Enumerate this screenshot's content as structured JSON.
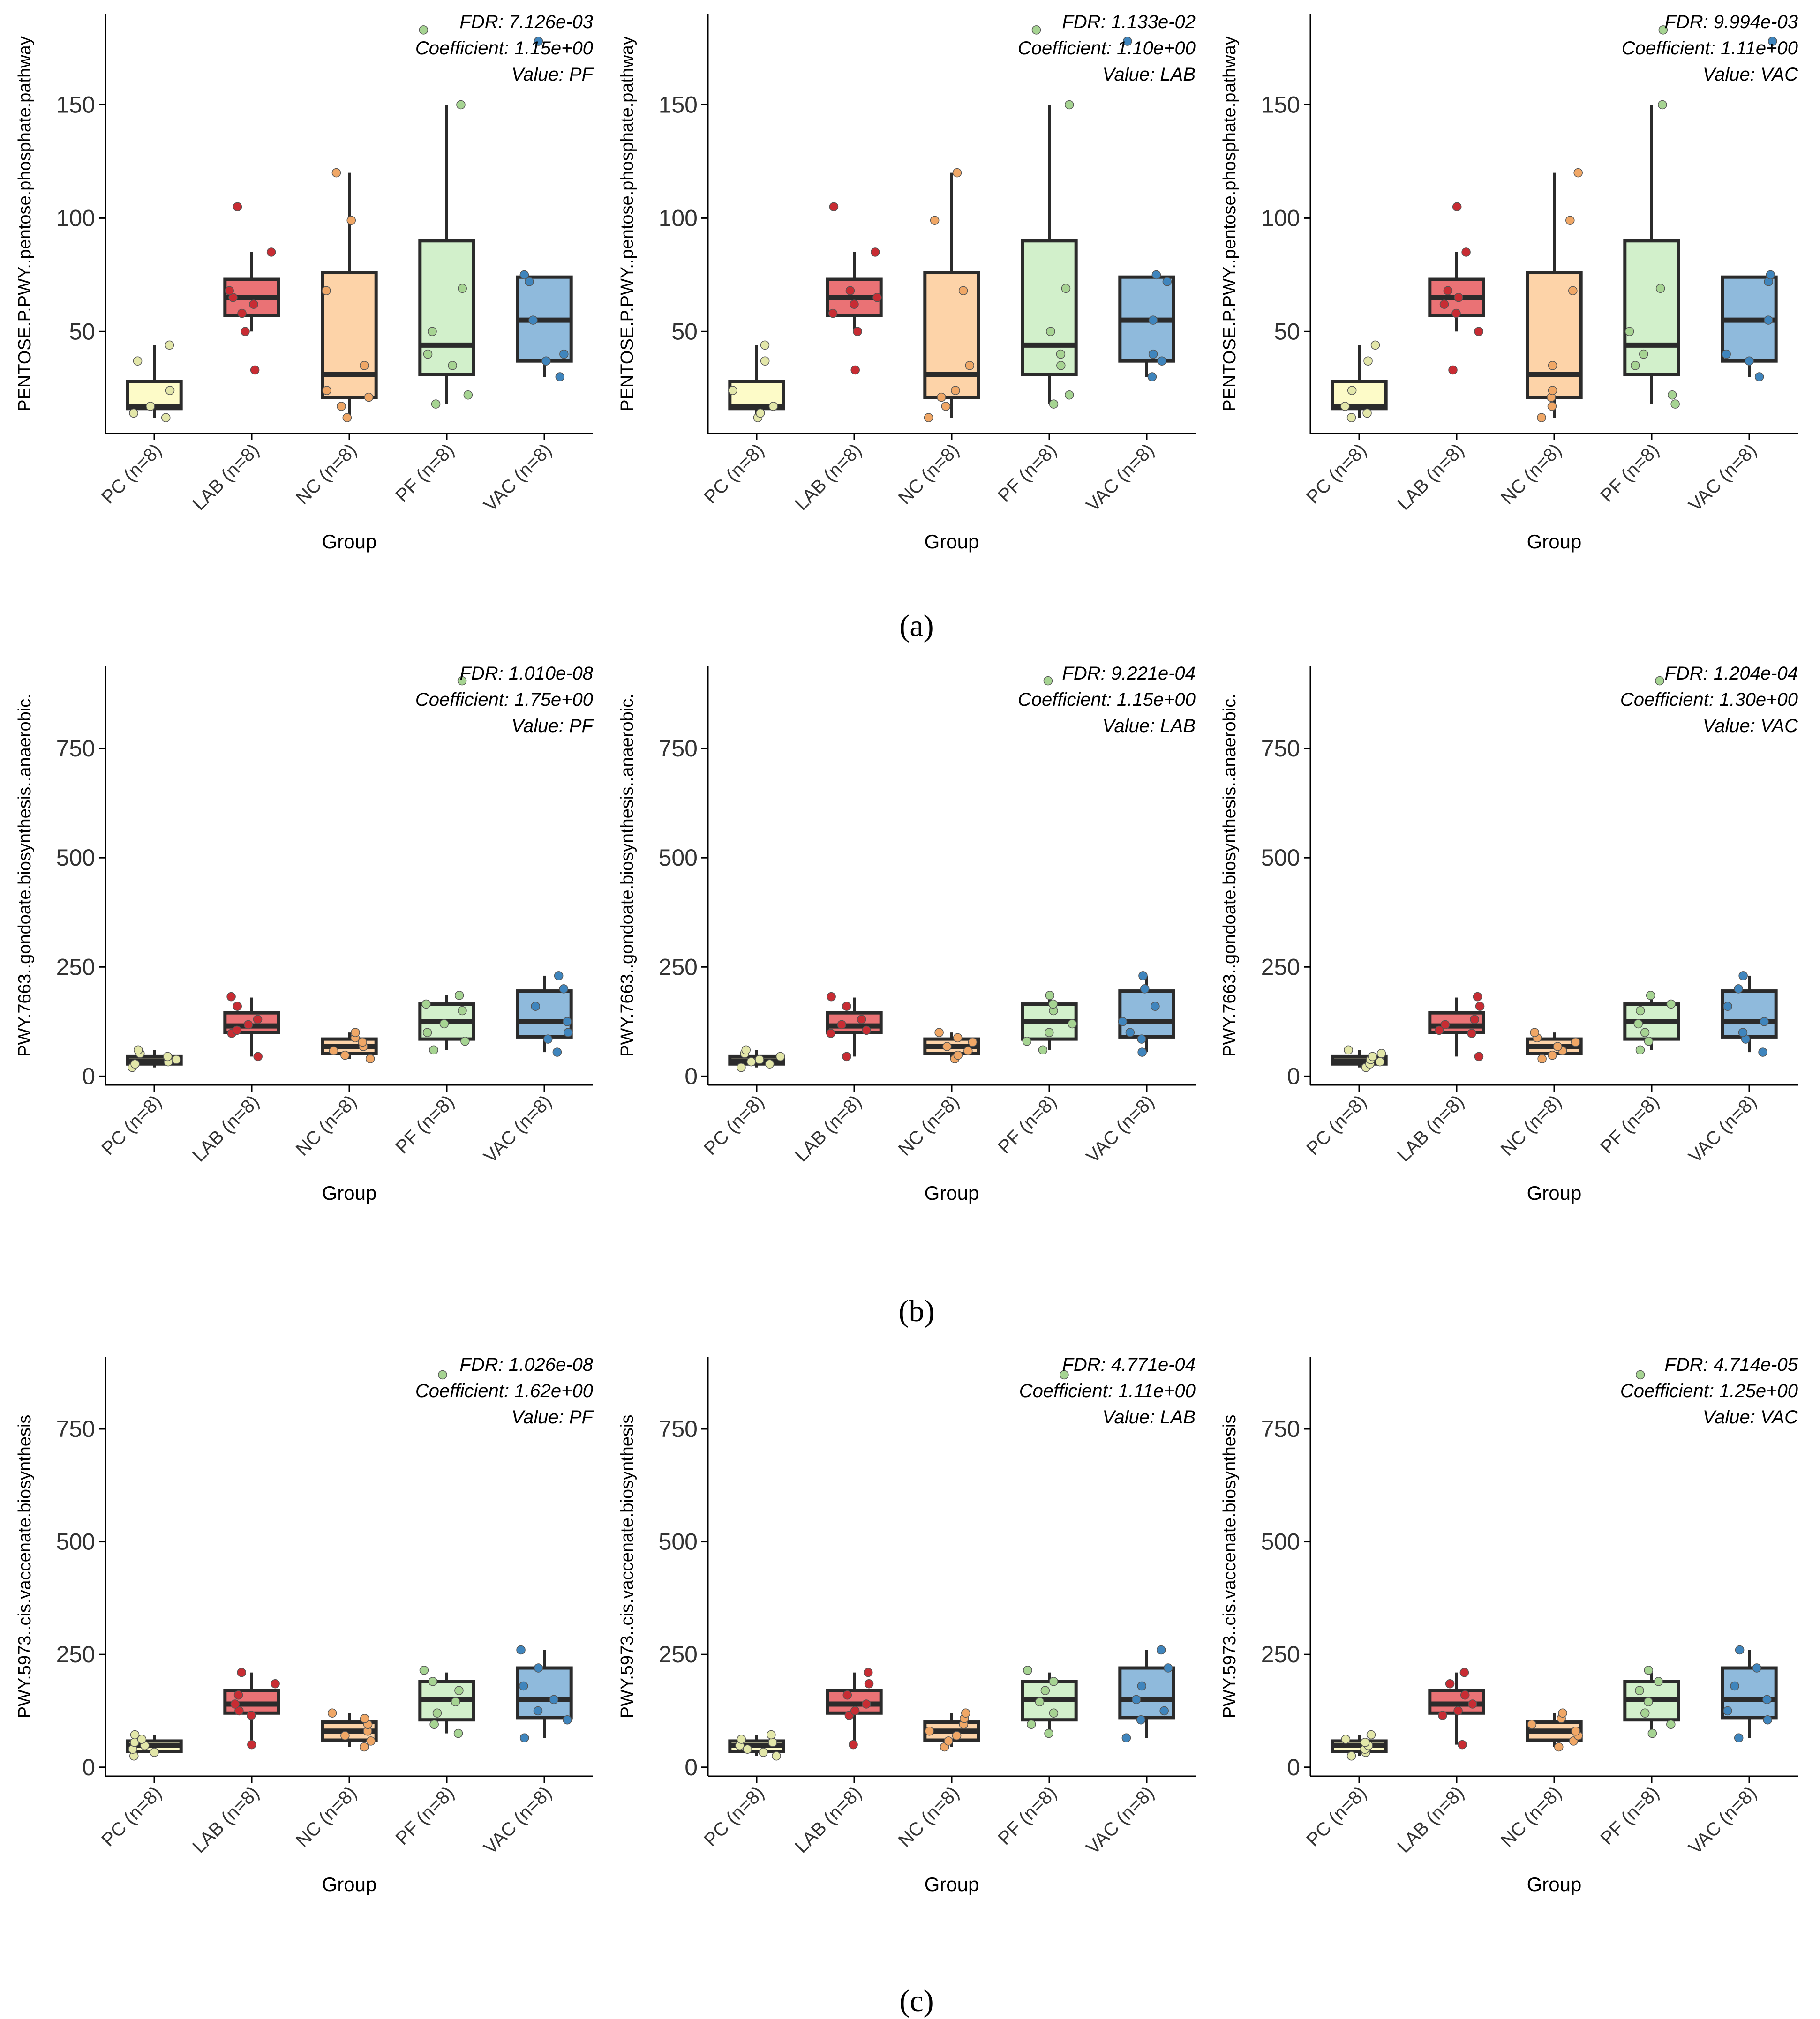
{
  "colors": {
    "PC": "#fdfbc8",
    "LAB": "#ea7275",
    "NC": "#fdd3a8",
    "PF": "#d2f0cb",
    "VAC": "#8fbadc",
    "PC_pt": "#e3e7a9",
    "LAB_pt": "#c82c33",
    "NC_pt": "#f0a766",
    "PF_pt": "#a6d492",
    "VAC_pt": "#3f85bd",
    "box_edge": "#2b2b2b"
  },
  "panel_labels": [
    "(a)",
    "(b)",
    "(c)"
  ],
  "chart_data": [
    {
      "type": "box",
      "row": 0,
      "col": 0,
      "ylabel": "PENTOSE.P.PWY..pentose.phosphate.pathway",
      "xlabel": "Group",
      "categories": [
        "PC (n=8)",
        "LAB (n=8)",
        "NC (n=8)",
        "PF (n=8)",
        "VAC (n=8)"
      ],
      "ylim": [
        5,
        190
      ],
      "yticks": [
        50,
        100,
        150
      ],
      "annotation": [
        "FDR: 7.126e-03",
        "Coefficient: 1.15e+00",
        "Value: PF"
      ],
      "boxes": [
        {
          "min": 12,
          "q1": 16,
          "median": 17,
          "q3": 28,
          "max": 44,
          "points": [
            12,
            14,
            17,
            24,
            37,
            44
          ]
        },
        {
          "min": 50,
          "q1": 57,
          "median": 65,
          "q3": 73,
          "max": 85,
          "points": [
            33,
            50,
            58,
            62,
            65,
            68,
            85,
            105
          ]
        },
        {
          "min": 12,
          "q1": 21,
          "median": 31,
          "q3": 76,
          "max": 120,
          "points": [
            12,
            17,
            21,
            24,
            35,
            68,
            99,
            120
          ]
        },
        {
          "min": 18,
          "q1": 31,
          "median": 44,
          "q3": 90,
          "max": 150,
          "points": [
            18,
            22,
            35,
            40,
            50,
            69,
            150,
            183
          ]
        },
        {
          "min": 30,
          "q1": 37,
          "median": 55,
          "q3": 74,
          "max": 74,
          "points": [
            30,
            37,
            40,
            55,
            72,
            75,
            178
          ]
        }
      ]
    },
    {
      "type": "box",
      "row": 0,
      "col": 1,
      "ylabel": "PENTOSE.P.PWY..pentose.phosphate.pathway",
      "xlabel": "Group",
      "categories": [
        "PC (n=8)",
        "LAB (n=8)",
        "NC (n=8)",
        "PF (n=8)",
        "VAC (n=8)"
      ],
      "ylim": [
        5,
        190
      ],
      "yticks": [
        50,
        100,
        150
      ],
      "annotation": [
        "FDR: 1.133e-02",
        "Coefficient: 1.10e+00",
        "Value: LAB"
      ],
      "boxes": [
        {
          "min": 12,
          "q1": 16,
          "median": 17,
          "q3": 28,
          "max": 44,
          "points": [
            12,
            14,
            17,
            24,
            37,
            44
          ]
        },
        {
          "min": 50,
          "q1": 57,
          "median": 65,
          "q3": 73,
          "max": 85,
          "points": [
            33,
            50,
            58,
            62,
            65,
            68,
            85,
            105
          ]
        },
        {
          "min": 12,
          "q1": 21,
          "median": 31,
          "q3": 76,
          "max": 120,
          "points": [
            12,
            17,
            21,
            24,
            35,
            68,
            99,
            120
          ]
        },
        {
          "min": 18,
          "q1": 31,
          "median": 44,
          "q3": 90,
          "max": 150,
          "points": [
            18,
            22,
            35,
            40,
            50,
            69,
            150,
            183
          ]
        },
        {
          "min": 30,
          "q1": 37,
          "median": 55,
          "q3": 74,
          "max": 74,
          "points": [
            30,
            37,
            40,
            55,
            72,
            75,
            178
          ]
        }
      ]
    },
    {
      "type": "box",
      "row": 0,
      "col": 2,
      "ylabel": "PENTOSE.P.PWY..pentose.phosphate.pathway",
      "xlabel": "Group",
      "categories": [
        "PC (n=8)",
        "LAB (n=8)",
        "NC (n=8)",
        "PF (n=8)",
        "VAC (n=8)"
      ],
      "ylim": [
        5,
        190
      ],
      "yticks": [
        50,
        100,
        150
      ],
      "annotation": [
        "FDR: 9.994e-03",
        "Coefficient: 1.11e+00",
        "Value: VAC"
      ],
      "boxes": [
        {
          "min": 12,
          "q1": 16,
          "median": 17,
          "q3": 28,
          "max": 44,
          "points": [
            12,
            14,
            17,
            24,
            37,
            44
          ]
        },
        {
          "min": 50,
          "q1": 57,
          "median": 65,
          "q3": 73,
          "max": 85,
          "points": [
            33,
            50,
            58,
            62,
            65,
            68,
            85,
            105
          ]
        },
        {
          "min": 12,
          "q1": 21,
          "median": 31,
          "q3": 76,
          "max": 120,
          "points": [
            12,
            17,
            21,
            24,
            35,
            68,
            99,
            120
          ]
        },
        {
          "min": 18,
          "q1": 31,
          "median": 44,
          "q3": 90,
          "max": 150,
          "points": [
            18,
            22,
            35,
            40,
            50,
            69,
            150,
            183
          ]
        },
        {
          "min": 30,
          "q1": 37,
          "median": 55,
          "q3": 74,
          "max": 74,
          "points": [
            30,
            37,
            40,
            55,
            72,
            75,
            178
          ]
        }
      ]
    },
    {
      "type": "box",
      "row": 1,
      "col": 0,
      "ylabel": "PWY.7663..gondoate.biosynthesis..anaerobic.",
      "xlabel": "Group",
      "categories": [
        "PC (n=8)",
        "LAB (n=8)",
        "NC (n=8)",
        "PF (n=8)",
        "VAC (n=8)"
      ],
      "ylim": [
        -20,
        940
      ],
      "yticks": [
        0,
        250,
        500,
        750
      ],
      "annotation": [
        "FDR: 1.010e-08",
        "Coefficient: 1.75e+00",
        "Value: PF"
      ],
      "boxes": [
        {
          "min": 20,
          "q1": 28,
          "median": 35,
          "q3": 45,
          "max": 60,
          "points": [
            20,
            28,
            33,
            38,
            45,
            52,
            60
          ]
        },
        {
          "min": 45,
          "q1": 100,
          "median": 115,
          "q3": 145,
          "max": 180,
          "points": [
            45,
            98,
            105,
            118,
            130,
            160,
            182
          ]
        },
        {
          "min": 40,
          "q1": 52,
          "median": 68,
          "q3": 85,
          "max": 100,
          "points": [
            40,
            48,
            58,
            68,
            78,
            88,
            100
          ]
        },
        {
          "min": 60,
          "q1": 85,
          "median": 125,
          "q3": 165,
          "max": 185,
          "points": [
            60,
            80,
            100,
            120,
            150,
            165,
            185,
            905
          ]
        },
        {
          "min": 55,
          "q1": 90,
          "median": 125,
          "q3": 195,
          "max": 230,
          "points": [
            55,
            85,
            100,
            125,
            160,
            200,
            230
          ]
        }
      ]
    },
    {
      "type": "box",
      "row": 1,
      "col": 1,
      "ylabel": "PWY.7663..gondoate.biosynthesis..anaerobic.",
      "xlabel": "Group",
      "categories": [
        "PC (n=8)",
        "LAB (n=8)",
        "NC (n=8)",
        "PF (n=8)",
        "VAC (n=8)"
      ],
      "ylim": [
        -20,
        940
      ],
      "yticks": [
        0,
        250,
        500,
        750
      ],
      "annotation": [
        "FDR: 9.221e-04",
        "Coefficient: 1.15e+00",
        "Value: LAB"
      ],
      "boxes": [
        {
          "min": 20,
          "q1": 28,
          "median": 35,
          "q3": 45,
          "max": 60,
          "points": [
            20,
            28,
            33,
            38,
            45,
            52,
            60
          ]
        },
        {
          "min": 45,
          "q1": 100,
          "median": 115,
          "q3": 145,
          "max": 180,
          "points": [
            45,
            98,
            105,
            118,
            130,
            160,
            182
          ]
        },
        {
          "min": 40,
          "q1": 52,
          "median": 68,
          "q3": 85,
          "max": 100,
          "points": [
            40,
            48,
            58,
            68,
            78,
            88,
            100
          ]
        },
        {
          "min": 60,
          "q1": 85,
          "median": 125,
          "q3": 165,
          "max": 185,
          "points": [
            60,
            80,
            100,
            120,
            150,
            165,
            185,
            905
          ]
        },
        {
          "min": 55,
          "q1": 90,
          "median": 125,
          "q3": 195,
          "max": 230,
          "points": [
            55,
            85,
            100,
            125,
            160,
            200,
            230
          ]
        }
      ]
    },
    {
      "type": "box",
      "row": 1,
      "col": 2,
      "ylabel": "PWY.7663..gondoate.biosynthesis..anaerobic.",
      "xlabel": "Group",
      "categories": [
        "PC (n=8)",
        "LAB (n=8)",
        "NC (n=8)",
        "PF (n=8)",
        "VAC (n=8)"
      ],
      "ylim": [
        -20,
        940
      ],
      "yticks": [
        0,
        250,
        500,
        750
      ],
      "annotation": [
        "FDR: 1.204e-04",
        "Coefficient: 1.30e+00",
        "Value: VAC"
      ],
      "boxes": [
        {
          "min": 20,
          "q1": 28,
          "median": 35,
          "q3": 45,
          "max": 60,
          "points": [
            20,
            28,
            33,
            38,
            45,
            52,
            60
          ]
        },
        {
          "min": 45,
          "q1": 100,
          "median": 115,
          "q3": 145,
          "max": 180,
          "points": [
            45,
            98,
            105,
            118,
            130,
            160,
            182
          ]
        },
        {
          "min": 40,
          "q1": 52,
          "median": 68,
          "q3": 85,
          "max": 100,
          "points": [
            40,
            48,
            58,
            68,
            78,
            88,
            100
          ]
        },
        {
          "min": 60,
          "q1": 85,
          "median": 125,
          "q3": 165,
          "max": 185,
          "points": [
            60,
            80,
            100,
            120,
            150,
            165,
            185,
            905
          ]
        },
        {
          "min": 55,
          "q1": 90,
          "median": 125,
          "q3": 195,
          "max": 230,
          "points": [
            55,
            85,
            100,
            125,
            160,
            200,
            230
          ]
        }
      ]
    },
    {
      "type": "box",
      "row": 2,
      "col": 0,
      "ylabel": "PWY.5973..cis.vaccenate.biosynthesis",
      "xlabel": "Group",
      "categories": [
        "PC (n=8)",
        "LAB (n=8)",
        "NC (n=8)",
        "PF (n=8)",
        "VAC (n=8)"
      ],
      "ylim": [
        -20,
        910
      ],
      "yticks": [
        0,
        250,
        500,
        750
      ],
      "annotation": [
        "FDR: 1.026e-08",
        "Coefficient: 1.62e+00",
        "Value: PF"
      ],
      "boxes": [
        {
          "min": 25,
          "q1": 35,
          "median": 48,
          "q3": 58,
          "max": 72,
          "points": [
            25,
            33,
            40,
            48,
            55,
            62,
            72
          ]
        },
        {
          "min": 50,
          "q1": 120,
          "median": 140,
          "q3": 170,
          "max": 210,
          "points": [
            50,
            115,
            125,
            140,
            160,
            185,
            210
          ]
        },
        {
          "min": 45,
          "q1": 60,
          "median": 80,
          "q3": 100,
          "max": 120,
          "points": [
            45,
            58,
            70,
            80,
            95,
            108,
            120
          ]
        },
        {
          "min": 75,
          "q1": 105,
          "median": 150,
          "q3": 190,
          "max": 210,
          "points": [
            75,
            95,
            120,
            145,
            170,
            190,
            215,
            870
          ]
        },
        {
          "min": 65,
          "q1": 110,
          "median": 150,
          "q3": 220,
          "max": 260,
          "points": [
            65,
            105,
            125,
            150,
            180,
            220,
            260
          ]
        }
      ]
    },
    {
      "type": "box",
      "row": 2,
      "col": 1,
      "ylabel": "PWY.5973..cis.vaccenate.biosynthesis",
      "xlabel": "Group",
      "categories": [
        "PC (n=8)",
        "LAB (n=8)",
        "NC (n=8)",
        "PF (n=8)",
        "VAC (n=8)"
      ],
      "ylim": [
        -20,
        910
      ],
      "yticks": [
        0,
        250,
        500,
        750
      ],
      "annotation": [
        "FDR: 4.771e-04",
        "Coefficient: 1.11e+00",
        "Value: LAB"
      ],
      "boxes": [
        {
          "min": 25,
          "q1": 35,
          "median": 48,
          "q3": 58,
          "max": 72,
          "points": [
            25,
            33,
            40,
            48,
            55,
            62,
            72
          ]
        },
        {
          "min": 50,
          "q1": 120,
          "median": 140,
          "q3": 170,
          "max": 210,
          "points": [
            50,
            115,
            125,
            140,
            160,
            185,
            210
          ]
        },
        {
          "min": 45,
          "q1": 60,
          "median": 80,
          "q3": 100,
          "max": 120,
          "points": [
            45,
            58,
            70,
            80,
            95,
            108,
            120
          ]
        },
        {
          "min": 75,
          "q1": 105,
          "median": 150,
          "q3": 190,
          "max": 210,
          "points": [
            75,
            95,
            120,
            145,
            170,
            190,
            215,
            870
          ]
        },
        {
          "min": 65,
          "q1": 110,
          "median": 150,
          "q3": 220,
          "max": 260,
          "points": [
            65,
            105,
            125,
            150,
            180,
            220,
            260
          ]
        }
      ]
    },
    {
      "type": "box",
      "row": 2,
      "col": 2,
      "ylabel": "PWY.5973..cis.vaccenate.biosynthesis",
      "xlabel": "Group",
      "categories": [
        "PC (n=8)",
        "LAB (n=8)",
        "NC (n=8)",
        "PF (n=8)",
        "VAC (n=8)"
      ],
      "ylim": [
        -20,
        910
      ],
      "yticks": [
        0,
        250,
        500,
        750
      ],
      "annotation": [
        "FDR: 4.714e-05",
        "Coefficient: 1.25e+00",
        "Value: VAC"
      ],
      "boxes": [
        {
          "min": 25,
          "q1": 35,
          "median": 48,
          "q3": 58,
          "max": 72,
          "points": [
            25,
            33,
            40,
            48,
            55,
            62,
            72
          ]
        },
        {
          "min": 50,
          "q1": 120,
          "median": 140,
          "q3": 170,
          "max": 210,
          "points": [
            50,
            115,
            125,
            140,
            160,
            185,
            210
          ]
        },
        {
          "min": 45,
          "q1": 60,
          "median": 80,
          "q3": 100,
          "max": 120,
          "points": [
            45,
            58,
            70,
            80,
            95,
            108,
            120
          ]
        },
        {
          "min": 75,
          "q1": 105,
          "median": 150,
          "q3": 190,
          "max": 210,
          "points": [
            75,
            95,
            120,
            145,
            170,
            190,
            215,
            870
          ]
        },
        {
          "min": 65,
          "q1": 110,
          "median": 150,
          "q3": 220,
          "max": 260,
          "points": [
            65,
            105,
            125,
            150,
            180,
            220,
            260
          ]
        }
      ]
    }
  ]
}
